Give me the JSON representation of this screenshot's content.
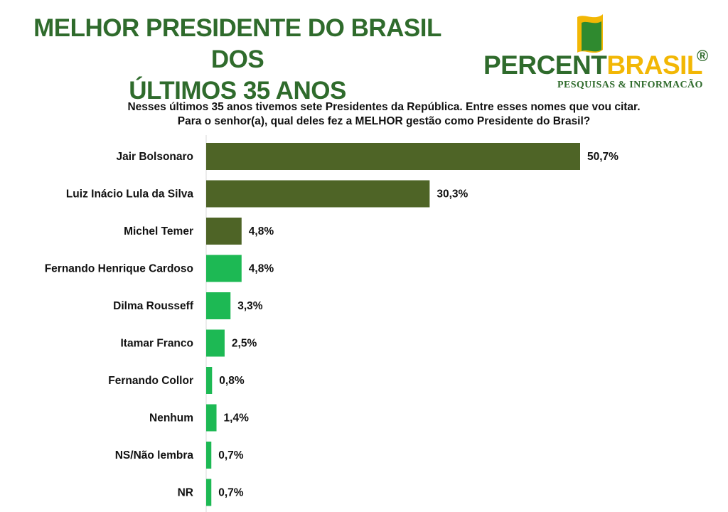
{
  "header": {
    "title_line1": "MELHOR PRESIDENTE DO BRASIL DOS",
    "title_line2": "ÚLTIMOS 35 ANOS"
  },
  "logo": {
    "word_part1": "PERCENT",
    "word_part2": "BRASIL",
    "registered_mark": "®",
    "tagline": "PESQUISAS & INFORMACÃO"
  },
  "question": {
    "line1": "Nesses últimos 35 anos tivemos sete Presidentes da República. Entre esses nomes que vou citar.",
    "line2": "Para o senhor(a), qual deles fez a MELHOR gestão como Presidente do Brasil?"
  },
  "colors": {
    "title_green": "#2f6b2c",
    "brand_yellow": "#f2b705",
    "bar_dark": "#4e6426",
    "bar_light": "#1db954"
  },
  "chart_data": {
    "type": "bar",
    "orientation": "horizontal",
    "categories": [
      "Jair Bolsonaro",
      "Luiz Inácio Lula da Silva",
      "Michel Temer",
      "Fernando Henrique Cardoso",
      "Dilma Rousseff",
      "Itamar Franco",
      "Fernando Collor",
      "Nenhum",
      "NS/Não lembra",
      "NR"
    ],
    "values": [
      50.7,
      30.3,
      4.8,
      4.8,
      3.3,
      2.5,
      0.8,
      1.4,
      0.7,
      0.7
    ],
    "value_labels": [
      "50,7%",
      "30,3%",
      "4,8%",
      "4,8%",
      "3,3%",
      "2,5%",
      "0,8%",
      "1,4%",
      "0,7%",
      "0,7%"
    ],
    "bar_colors": [
      "dark",
      "dark",
      "dark",
      "light",
      "light",
      "light",
      "light",
      "light",
      "light",
      "light"
    ],
    "unit": "%",
    "xlim": [
      0,
      55
    ],
    "grid": false,
    "legend": "none"
  }
}
